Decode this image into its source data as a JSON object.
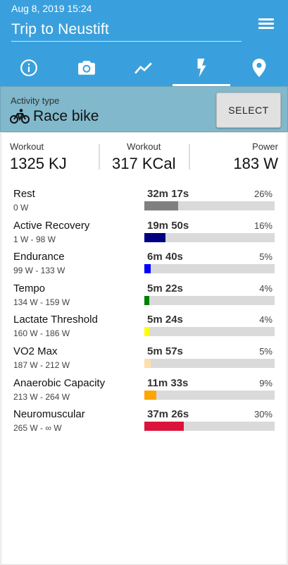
{
  "header": {
    "date": "Aug 8, 2019 15:24",
    "title": "Trip to Neustift",
    "menu_icon": "hamburger-menu-icon",
    "tabs": [
      {
        "icon": "info-icon",
        "active": false
      },
      {
        "icon": "camera-icon",
        "active": false
      },
      {
        "icon": "chart-line-icon",
        "active": false
      },
      {
        "icon": "lightning-icon",
        "active": true
      },
      {
        "icon": "location-pin-icon",
        "active": false
      }
    ],
    "color": "#3aa0dd"
  },
  "activity": {
    "label": "Activity type",
    "icon": "bicycle-icon",
    "value": "Race bike",
    "select_label": "SELECT"
  },
  "stats": [
    {
      "label": "Workout",
      "value": "1325 KJ"
    },
    {
      "label": "Workout",
      "value": "317 KCal"
    },
    {
      "label": "Power",
      "value": "183 W"
    }
  ],
  "zones": [
    {
      "name": "Rest",
      "range": "0 W",
      "time": "32m 17s",
      "percent_label": "26%",
      "fraction": 0.26,
      "color": "#808080"
    },
    {
      "name": "Active Recovery",
      "range": "1 W - 98 W",
      "time": "19m 50s",
      "percent_label": "16%",
      "fraction": 0.16,
      "color": "#000080"
    },
    {
      "name": "Endurance",
      "range": "99 W - 133 W",
      "time": "6m 40s",
      "percent_label": "5%",
      "fraction": 0.05,
      "color": "#0000ff"
    },
    {
      "name": "Tempo",
      "range": "134 W - 159 W",
      "time": "5m 22s",
      "percent_label": "4%",
      "fraction": 0.04,
      "color": "#008000"
    },
    {
      "name": "Lactate Threshold",
      "range": "160 W - 186 W",
      "time": "5m 24s",
      "percent_label": "4%",
      "fraction": 0.04,
      "color": "#ffff00"
    },
    {
      "name": "VO2 Max",
      "range": "187 W - 212 W",
      "time": "5m 57s",
      "percent_label": "5%",
      "fraction": 0.05,
      "color": "#ffdead"
    },
    {
      "name": "Anaerobic Capacity",
      "range": "213 W - 264 W",
      "time": "11m 33s",
      "percent_label": "9%",
      "fraction": 0.09,
      "color": "#ffa500"
    },
    {
      "name": "Neuromuscular",
      "range": "265 W - ∞ W",
      "time": "37m 26s",
      "percent_label": "30%",
      "fraction": 0.3,
      "color": "#dc143c"
    }
  ]
}
